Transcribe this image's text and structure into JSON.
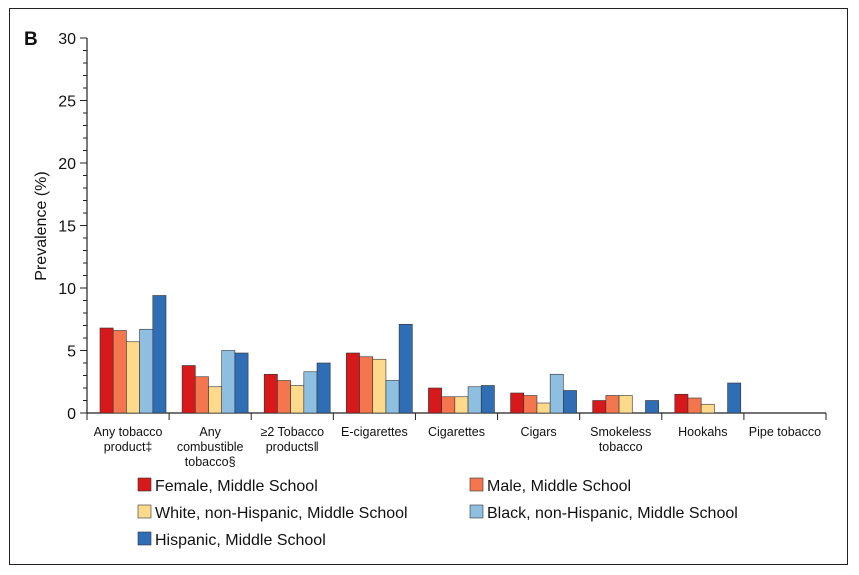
{
  "panel_label": "B",
  "chart_data": {
    "type": "bar",
    "ylabel": "Prevalence (%)",
    "ylim": [
      0,
      30
    ],
    "yticks": [
      0,
      5,
      10,
      15,
      20,
      25,
      30
    ],
    "grid": false,
    "legend_position": "bottom",
    "categories": [
      [
        "Any tobacco",
        "product‡"
      ],
      [
        "Any",
        "combustible",
        "tobacco§"
      ],
      [
        "≥2 Tobacco",
        "products‖"
      ],
      [
        "E-cigarettes"
      ],
      [
        "Cigarettes"
      ],
      [
        "Cigars"
      ],
      [
        "Smokeless",
        "tobacco"
      ],
      [
        "Hookahs"
      ],
      [
        "Pipe tobacco"
      ]
    ],
    "series": [
      {
        "name": "Female, Middle School",
        "color": "#d7191c",
        "values": [
          6.8,
          3.8,
          3.1,
          4.8,
          2.0,
          1.6,
          1.0,
          1.5,
          null
        ]
      },
      {
        "name": "Male, Middle School",
        "color": "#f4764f",
        "values": [
          6.6,
          2.9,
          2.6,
          4.5,
          1.3,
          1.4,
          1.4,
          1.2,
          null
        ]
      },
      {
        "name": "White, non-Hispanic, Middle School",
        "color": "#fdd98b",
        "values": [
          5.7,
          2.1,
          2.2,
          4.3,
          1.3,
          0.8,
          1.4,
          0.7,
          null
        ]
      },
      {
        "name": "Black, non-Hispanic, Middle School",
        "color": "#8fbfe0",
        "values": [
          6.7,
          5.0,
          3.3,
          2.6,
          2.1,
          3.1,
          null,
          null,
          null
        ]
      },
      {
        "name": "Hispanic, Middle School",
        "color": "#2f6db5",
        "values": [
          9.4,
          4.8,
          4.0,
          7.1,
          2.2,
          1.8,
          1.0,
          2.4,
          null
        ]
      }
    ]
  }
}
